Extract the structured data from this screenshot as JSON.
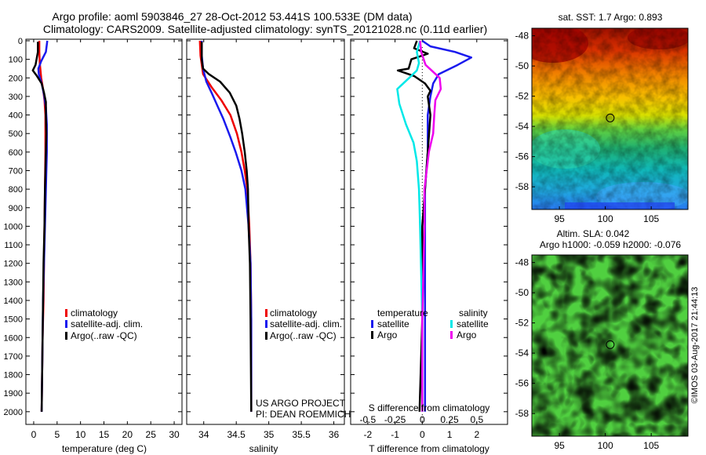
{
  "header": {
    "title_line1": "Argo profile: aoml 5903846_27 28-Oct-2012 53.441S 100.533E (DM data)",
    "title_line2": "Climatology: CARS2009. Satellite-adjusted climatology: synTS_20121028.nc (0.11d earlier)"
  },
  "credits": {
    "project": "US ARGO PROJECT",
    "pi": "PI: DEAN ROEMMICH",
    "imos": "©IMOS 03-Aug-2017 21:44:13"
  },
  "colors": {
    "climatology": "#ee0000",
    "satellite_adj": "#1a1aee",
    "argo": "#000000",
    "satellite_s": "#00e8e8",
    "argo_s": "#ee00ee"
  },
  "chart_data": [
    {
      "id": "temperature",
      "type": "line",
      "xlabel": "temperature (deg C)",
      "ylabel": "",
      "xlim": [
        -1.5,
        31.5
      ],
      "ylim": [
        2060,
        0
      ],
      "xticks": [
        0,
        5,
        10,
        15,
        20,
        25,
        30
      ],
      "xtick_labels": [
        "0",
        "5",
        "10",
        "15",
        "20",
        "25",
        "30"
      ],
      "yticks": [
        0,
        100,
        200,
        300,
        400,
        500,
        600,
        700,
        800,
        900,
        1000,
        1100,
        1200,
        1300,
        1400,
        1500,
        1600,
        1700,
        1800,
        1900,
        2000
      ],
      "ytick_labels": [
        "0",
        "100",
        "200",
        "300",
        "400",
        "500",
        "600",
        "700",
        "800",
        "900",
        "1000",
        "1100",
        "1200",
        "1300",
        "1400",
        "1500",
        "1600",
        "1700",
        "1800",
        "1900",
        "2000"
      ],
      "legend": [
        "climatology",
        "satellite-adj. clim.",
        "Argo(..raw -QC)"
      ],
      "series": [
        {
          "name": "climatology",
          "color_key": "climatology",
          "points": [
            [
              1.2,
              0
            ],
            [
              1.2,
              60
            ],
            [
              1.3,
              120
            ],
            [
              1.6,
              200
            ],
            [
              2.0,
              260
            ],
            [
              2.3,
              320
            ],
            [
              2.5,
              400
            ],
            [
              2.5,
              600
            ],
            [
              2.4,
              800
            ],
            [
              2.3,
              1000
            ],
            [
              2.2,
              1200
            ],
            [
              2.1,
              1400
            ],
            [
              1.9,
              1600
            ],
            [
              1.8,
              1800
            ],
            [
              1.7,
              2000
            ]
          ]
        },
        {
          "name": "satellite-adj. clim.",
          "color_key": "satellite_adj",
          "points": [
            [
              2.9,
              0
            ],
            [
              2.6,
              60
            ],
            [
              1.6,
              110
            ],
            [
              1.0,
              150
            ],
            [
              1.1,
              180
            ],
            [
              1.7,
              230
            ],
            [
              2.2,
              290
            ],
            [
              2.6,
              360
            ],
            [
              2.8,
              450
            ],
            [
              2.8,
              600
            ],
            [
              2.6,
              800
            ],
            [
              2.4,
              1000
            ],
            [
              2.2,
              1200
            ],
            [
              2.0,
              1400
            ],
            [
              1.9,
              1600
            ],
            [
              1.8,
              1800
            ],
            [
              1.7,
              2000
            ]
          ]
        },
        {
          "name": "Argo(..raw -QC)",
          "color_key": "argo",
          "points": [
            [
              0.9,
              5
            ],
            [
              0.9,
              60
            ],
            [
              0.4,
              130
            ],
            [
              -0.2,
              160
            ],
            [
              0.7,
              190
            ],
            [
              1.7,
              230
            ],
            [
              2.2,
              280
            ],
            [
              2.6,
              330
            ],
            [
              2.6,
              400
            ],
            [
              2.7,
              500
            ],
            [
              2.6,
              600
            ],
            [
              2.4,
              800
            ],
            [
              2.3,
              1000
            ],
            [
              2.1,
              1200
            ],
            [
              2.0,
              1400
            ],
            [
              1.9,
              1600
            ],
            [
              1.8,
              1800
            ],
            [
              1.7,
              2000
            ]
          ]
        }
      ]
    },
    {
      "id": "salinity",
      "type": "line",
      "xlabel": "salinity",
      "xlim": [
        33.75,
        36.15
      ],
      "ylim": [
        2060,
        0
      ],
      "xticks": [
        34,
        34.5,
        35,
        35.5,
        36
      ],
      "xtick_labels": [
        "34",
        "34.5",
        "35",
        "35.5",
        "36"
      ],
      "legend": [
        "climatology",
        "satellite-adj. clim.",
        "Argo(..raw -QC)"
      ],
      "series": [
        {
          "name": "climatology",
          "color_key": "climatology",
          "points": [
            [
              33.94,
              0
            ],
            [
              33.95,
              80
            ],
            [
              33.99,
              180
            ],
            [
              34.12,
              250
            ],
            [
              34.27,
              320
            ],
            [
              34.41,
              400
            ],
            [
              34.51,
              500
            ],
            [
              34.58,
              600
            ],
            [
              34.63,
              700
            ],
            [
              34.67,
              800
            ],
            [
              34.7,
              1000
            ],
            [
              34.72,
              1200
            ],
            [
              34.73,
              1500
            ],
            [
              34.73,
              2000
            ]
          ]
        },
        {
          "name": "satellite-adj. clim.",
          "color_key": "satellite_adj",
          "points": [
            [
              33.97,
              0
            ],
            [
              33.97,
              80
            ],
            [
              33.99,
              150
            ],
            [
              34.04,
              220
            ],
            [
              34.12,
              280
            ],
            [
              34.21,
              350
            ],
            [
              34.3,
              420
            ],
            [
              34.41,
              520
            ],
            [
              34.49,
              600
            ],
            [
              34.58,
              700
            ],
            [
              34.64,
              800
            ],
            [
              34.69,
              1000
            ],
            [
              34.72,
              1200
            ],
            [
              34.73,
              1500
            ],
            [
              34.73,
              2000
            ]
          ]
        },
        {
          "name": "Argo(..raw -QC)",
          "color_key": "argo",
          "points": [
            [
              33.97,
              5
            ],
            [
              33.97,
              100
            ],
            [
              33.99,
              150
            ],
            [
              34.08,
              180
            ],
            [
              34.25,
              220
            ],
            [
              34.4,
              280
            ],
            [
              34.5,
              350
            ],
            [
              34.55,
              420
            ],
            [
              34.59,
              500
            ],
            [
              34.63,
              600
            ],
            [
              34.66,
              700
            ],
            [
              34.68,
              800
            ],
            [
              34.69,
              1000
            ],
            [
              34.71,
              1200
            ],
            [
              34.72,
              1500
            ],
            [
              34.73,
              2000
            ]
          ]
        }
      ]
    },
    {
      "id": "difference",
      "type": "line",
      "xlabel": "T difference from climatology",
      "xlabel_top": "S difference from climatology",
      "xlim": [
        -2.6,
        3.1
      ],
      "ylim": [
        2060,
        0
      ],
      "xticks": [
        -2,
        -1,
        0,
        1,
        2
      ],
      "xtick_labels": [
        "-2",
        "-1",
        "0",
        "1",
        "2"
      ],
      "top_ticks": [
        -0.5,
        -0.25,
        0,
        0.25,
        0.5
      ],
      "top_tick_labels": [
        "-0.5",
        "-0.25",
        "0",
        "0.25",
        "0.5"
      ],
      "legend_headers": [
        "temperature",
        "salinity"
      ],
      "legend": [
        "satellite",
        "Argo",
        "satellite",
        "Argo"
      ],
      "series": [
        {
          "name": "T satellite",
          "color_key": "satellite_adj",
          "units": "degC",
          "points": [
            [
              0.0,
              0
            ],
            [
              0.3,
              30
            ],
            [
              1.2,
              60
            ],
            [
              1.8,
              90
            ],
            [
              1.3,
              130
            ],
            [
              0.6,
              180
            ],
            [
              0.4,
              230
            ],
            [
              0.3,
              300
            ],
            [
              0.2,
              400
            ],
            [
              0.2,
              600
            ],
            [
              0.1,
              800
            ],
            [
              0.1,
              1000
            ],
            [
              0.1,
              1500
            ],
            [
              0.1,
              2000
            ]
          ]
        },
        {
          "name": "T Argo",
          "color_key": "argo",
          "units": "degC",
          "points": [
            [
              -0.2,
              0
            ],
            [
              -0.3,
              40
            ],
            [
              0.2,
              70
            ],
            [
              -0.4,
              100
            ],
            [
              -0.5,
              150
            ],
            [
              -0.9,
              160
            ],
            [
              -0.3,
              190
            ],
            [
              0.1,
              230
            ],
            [
              0.3,
              270
            ],
            [
              0.2,
              300
            ],
            [
              0.3,
              400
            ],
            [
              0.2,
              600
            ],
            [
              0.1,
              800
            ],
            [
              0.0,
              1000
            ],
            [
              0.0,
              1500
            ],
            [
              -0.1,
              2000
            ]
          ]
        },
        {
          "name": "S satellite",
          "color_key": "satellite_s",
          "units": "psu",
          "points": [
            [
              -0.02,
              0
            ],
            [
              -0.05,
              60
            ],
            [
              -0.03,
              120
            ],
            [
              -0.05,
              160
            ],
            [
              -0.12,
              200
            ],
            [
              -0.23,
              260
            ],
            [
              -0.21,
              340
            ],
            [
              -0.15,
              450
            ],
            [
              -0.08,
              550
            ],
            [
              -0.05,
              650
            ],
            [
              -0.03,
              800
            ],
            [
              -0.02,
              1000
            ],
            [
              0.0,
              1500
            ],
            [
              0.0,
              2000
            ]
          ]
        },
        {
          "name": "S Argo",
          "color_key": "argo_s",
          "units": "psu",
          "points": [
            [
              -0.02,
              0
            ],
            [
              -0.01,
              60
            ],
            [
              0.03,
              130
            ],
            [
              0.16,
              200
            ],
            [
              0.17,
              260
            ],
            [
              0.12,
              320
            ],
            [
              0.11,
              400
            ],
            [
              0.1,
              500
            ],
            [
              0.06,
              600
            ],
            [
              0.04,
              700
            ],
            [
              0.02,
              800
            ],
            [
              0.02,
              1000
            ],
            [
              0.0,
              1500
            ],
            [
              0.0,
              2000
            ]
          ]
        }
      ]
    },
    {
      "id": "sst_map",
      "type": "heatmap",
      "title": "sat. SST: 1.7 Argo: 0.893",
      "xlim": [
        92,
        109
      ],
      "ylim": [
        -59.5,
        -47.5
      ],
      "xticks": [
        95,
        100,
        105
      ],
      "xtick_labels": [
        "95",
        "100",
        "105"
      ],
      "yticks": [
        -48,
        -50,
        -52,
        -54,
        -56,
        -58
      ],
      "ytick_labels": [
        "-48",
        "-50",
        "-52",
        "-54",
        "-56",
        "-58"
      ],
      "marker": {
        "lon": 100.533,
        "lat": -53.441
      }
    },
    {
      "id": "sla_map",
      "type": "heatmap",
      "title_line1": "Altim. SLA: 0.042",
      "title_line2": "Argo h1000: -0.059 h2000: -0.076",
      "xlim": [
        92,
        109
      ],
      "ylim": [
        -59.5,
        -47.5
      ],
      "xticks": [
        95,
        100,
        105
      ],
      "xtick_labels": [
        "95",
        "100",
        "105"
      ],
      "yticks": [
        -48,
        -50,
        -52,
        -54,
        -56,
        -58
      ],
      "ytick_labels": [
        "-48",
        "-50",
        "-52",
        "-54",
        "-56",
        "-58"
      ],
      "marker": {
        "lon": 100.533,
        "lat": -53.441
      }
    }
  ]
}
